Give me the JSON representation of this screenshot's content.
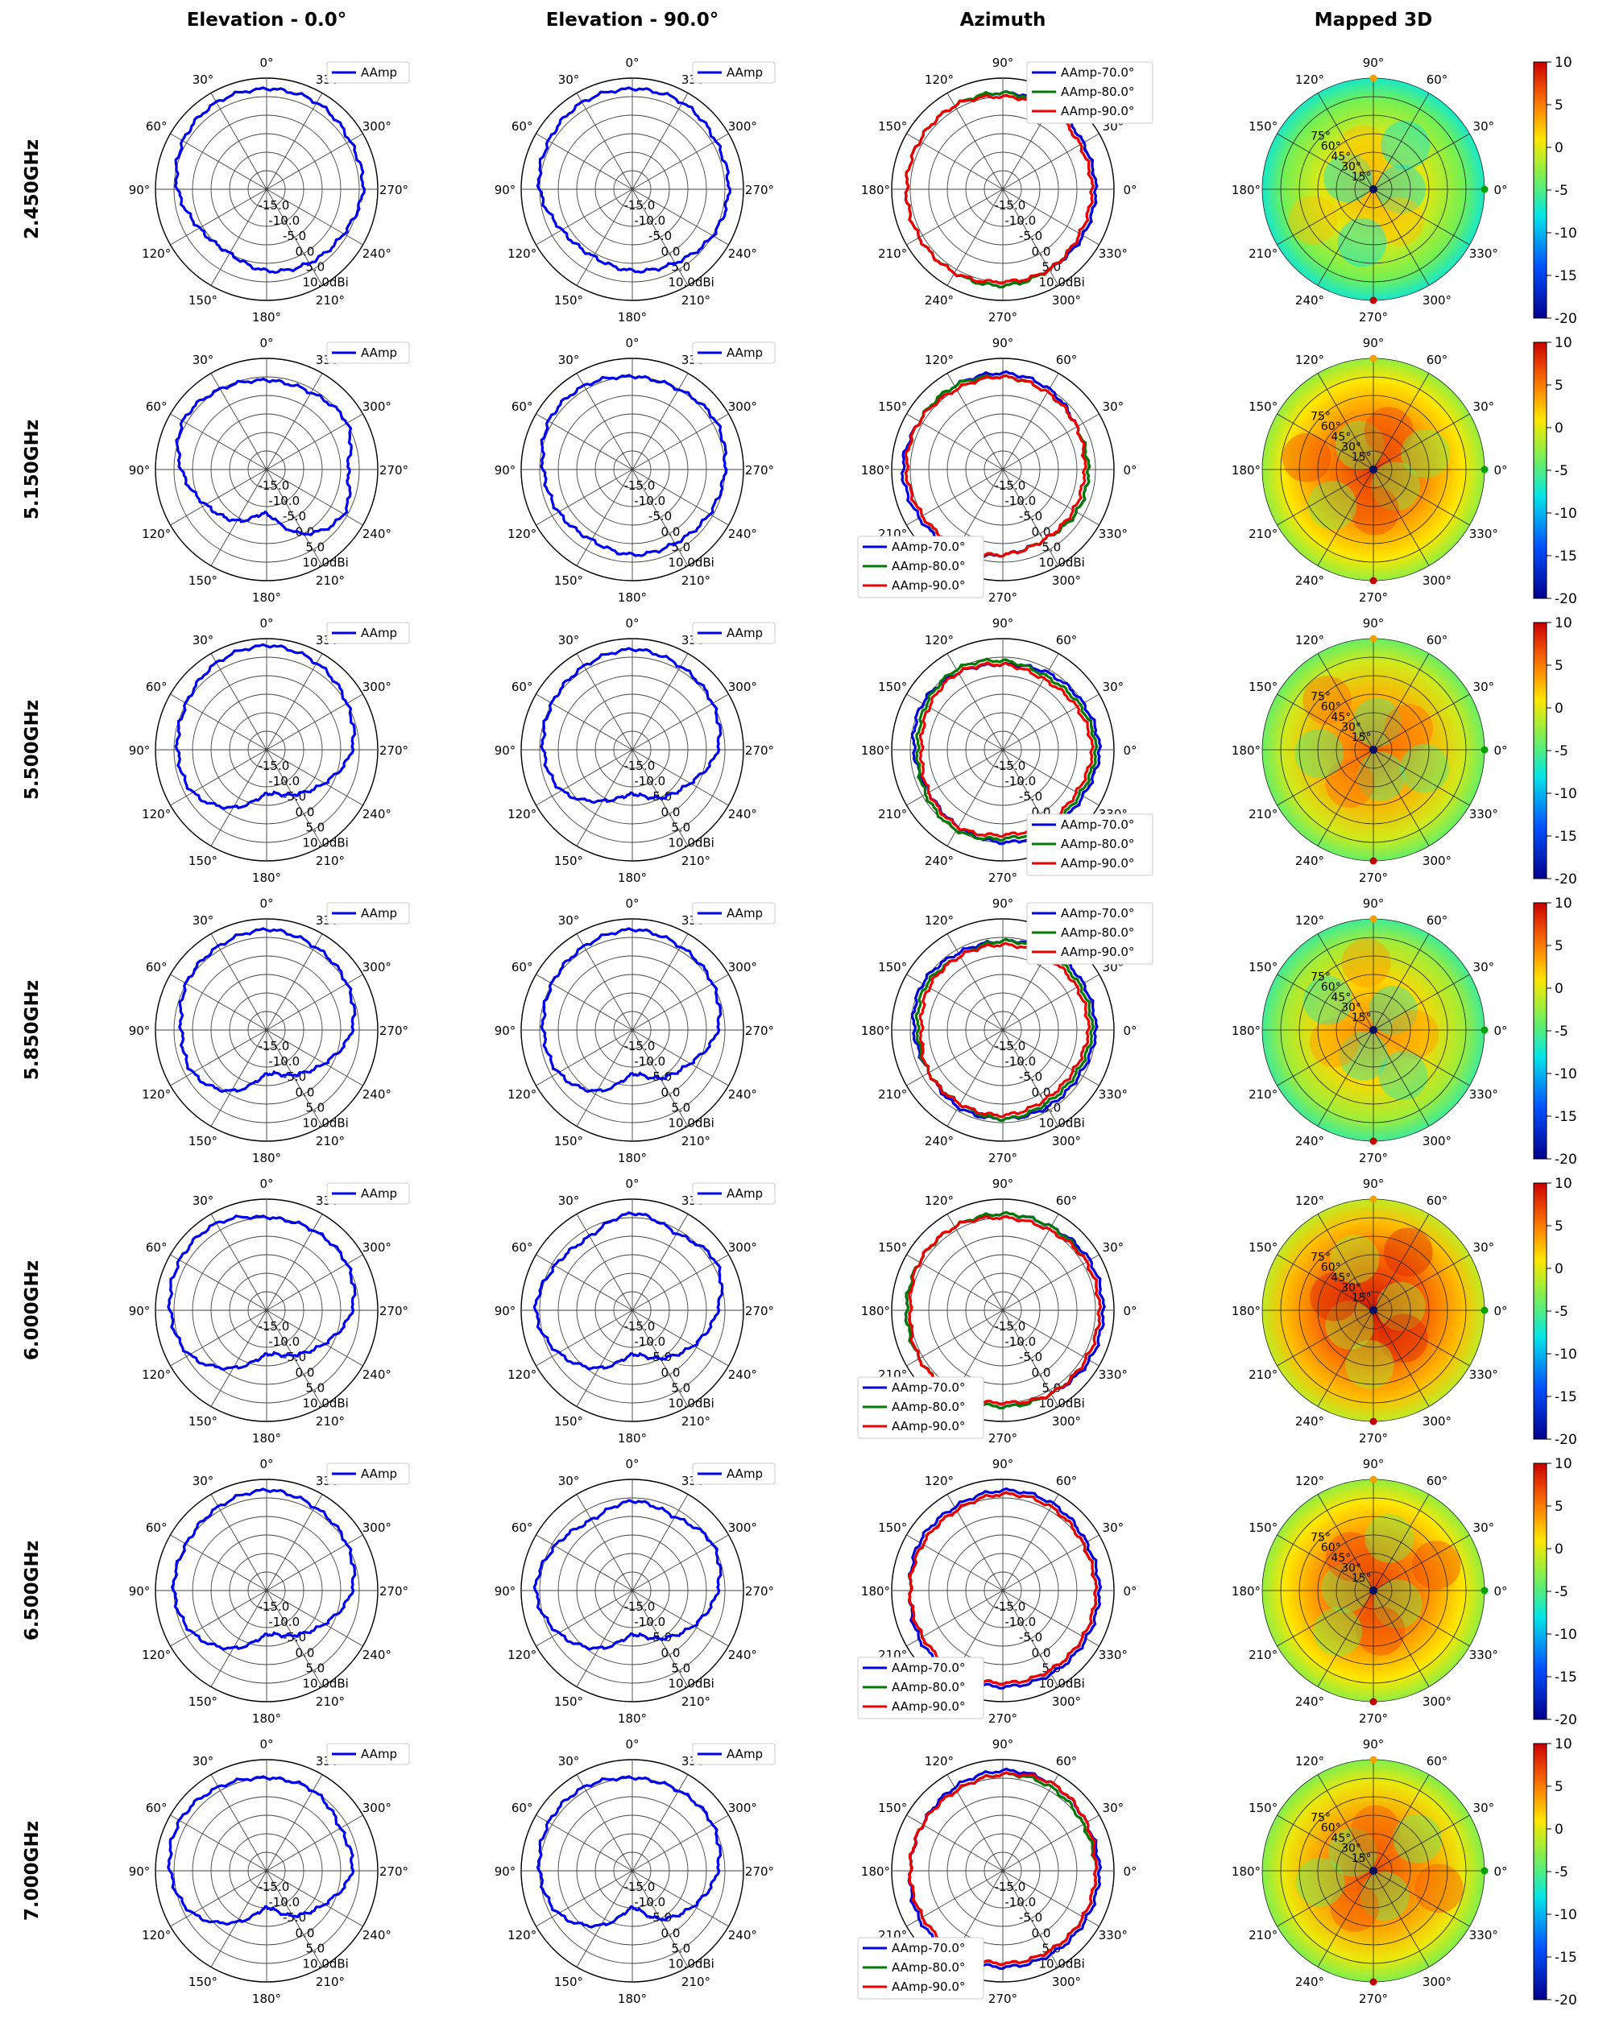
{
  "columns": [
    "Elevation - 0.0°",
    "Elevation - 90.0°",
    "Azimuth",
    "Mapped 3D"
  ],
  "rows": [
    "2.450GHz",
    "5.150GHz",
    "5.500GHz",
    "5.850GHz",
    "6.000GHz",
    "6.500GHz",
    "7.000GHz"
  ],
  "colors": {
    "elevation": "#0000ee",
    "az70": "#0000dd",
    "az80": "#007a00",
    "az90": "#ee0000"
  },
  "chart_data": {
    "type": "polar",
    "radial_axis": {
      "min": -20,
      "max": 10,
      "unit": "dBi",
      "tick_labels": [
        "-15.0",
        "-10.0",
        "-5.0",
        "0.0",
        "5.0",
        "10.0dBi"
      ]
    },
    "elevation_angle_labels": [
      "0°",
      "30°",
      "60°",
      "90°",
      "120°",
      "150°",
      "180°",
      "210°",
      "240°",
      "270°",
      "300°",
      "330°"
    ],
    "azimuth_angle_labels": [
      "0°",
      "30°",
      "60°",
      "90°",
      "120°",
      "150°",
      "180°",
      "210°",
      "240°",
      "270°",
      "300°",
      "330°"
    ],
    "elevation_legend": "AAmp",
    "azimuth_legend": [
      "AAmp-70.0°",
      "AAmp-80.0°",
      "AAmp-90.0°"
    ],
    "map3d_theta_labels": [
      "75°",
      "60°",
      "45°",
      "30°",
      "15°"
    ],
    "colorbar": {
      "min": -20,
      "max": 10,
      "ticks": [
        "10",
        "5",
        "0",
        "-5",
        "-10",
        "-15",
        "-20"
      ]
    },
    "frequencies": [
      {
        "freq": "2.450GHz",
        "elev0": [
          7,
          7,
          6,
          4,
          1,
          0,
          2,
          3,
          4,
          6,
          6,
          7
        ],
        "elev90": [
          7,
          7,
          6,
          5,
          2,
          1,
          2,
          3,
          5,
          6,
          6,
          7
        ],
        "az70": [
          5,
          5,
          6,
          6,
          6,
          6,
          6,
          6,
          6,
          6,
          5,
          5
        ],
        "az80": [
          4,
          4,
          5,
          6,
          6,
          6,
          6,
          6,
          6,
          6,
          5,
          4
        ],
        "az90": [
          4,
          4,
          5,
          5,
          6,
          6,
          6,
          6,
          6,
          5,
          5,
          4
        ],
        "map_warm": 0.55
      },
      {
        "freq": "5.150GHz",
        "elev0": [
          4,
          5,
          6,
          3,
          -1,
          -4,
          -8,
          0,
          4,
          2,
          5,
          4
        ],
        "elev90": [
          5,
          6,
          6,
          4,
          3,
          2,
          3,
          3,
          4,
          5,
          6,
          5
        ],
        "az70": [
          3,
          3,
          5,
          6,
          6,
          6,
          7,
          6,
          5,
          3,
          2,
          3
        ],
        "az80": [
          3,
          3,
          4,
          5,
          6,
          6,
          6,
          5,
          4,
          3,
          2,
          3
        ],
        "az90": [
          2,
          3,
          4,
          5,
          5,
          6,
          6,
          5,
          4,
          3,
          2,
          2
        ],
        "map_warm": 0.7
      },
      {
        "freq": "5.500GHz",
        "elev0": [
          8,
          7,
          5,
          4,
          3,
          -2,
          -8,
          -6,
          -2,
          3,
          5,
          7
        ],
        "elev90": [
          7,
          6,
          5,
          4,
          2,
          -4,
          -8,
          -5,
          -2,
          3,
          5,
          6
        ],
        "az70": [
          6,
          5,
          4,
          3,
          4,
          5,
          4,
          3,
          4,
          5,
          5,
          5
        ],
        "az80": [
          5,
          4,
          3,
          4,
          5,
          4,
          3,
          4,
          5,
          4,
          4,
          4
        ],
        "az90": [
          4,
          3,
          2,
          3,
          4,
          3,
          2,
          3,
          4,
          3,
          3,
          3
        ],
        "map_warm": 0.65
      },
      {
        "freq": "5.850GHz",
        "elev0": [
          7,
          6,
          5,
          3,
          3,
          -1,
          -8,
          -6,
          -2,
          3,
          5,
          6
        ],
        "elev90": [
          7,
          6,
          5,
          4,
          3,
          -1,
          -8,
          -5,
          -2,
          3,
          5,
          6
        ],
        "az70": [
          5,
          5,
          5,
          4,
          4,
          5,
          4,
          3,
          4,
          4,
          4,
          4
        ],
        "az80": [
          4,
          4,
          4,
          4,
          3,
          4,
          3,
          3,
          3,
          4,
          3,
          3
        ],
        "az90": [
          3,
          3,
          3,
          3,
          3,
          3,
          2,
          3,
          3,
          3,
          2,
          2
        ],
        "map_warm": 0.6
      },
      {
        "freq": "6.000GHz",
        "elev0": [
          5,
          7,
          7,
          6,
          4,
          -2,
          -8,
          -6,
          -2,
          3,
          5,
          5
        ],
        "elev90": [
          6,
          3,
          4,
          6,
          3,
          -2,
          -8,
          -5,
          -1,
          3,
          6,
          4
        ],
        "az70": [
          7,
          7,
          6,
          6,
          6,
          6,
          6,
          6,
          6,
          6,
          6,
          7
        ],
        "az80": [
          6,
          6,
          6,
          6,
          6,
          6,
          6,
          6,
          6,
          6,
          6,
          6
        ],
        "az90": [
          6,
          6,
          5,
          5,
          6,
          6,
          5,
          6,
          6,
          5,
          6,
          6
        ],
        "map_warm": 0.75
      },
      {
        "freq": "6.500GHz",
        "elev0": [
          7,
          6,
          5,
          5,
          3,
          -2,
          -8,
          -6,
          -2,
          3,
          5,
          6
        ],
        "elev90": [
          4,
          2,
          4,
          6,
          3,
          -2,
          -8,
          -5,
          -1,
          3,
          5,
          3
        ],
        "az70": [
          6,
          6,
          7,
          7,
          6,
          6,
          5,
          6,
          6,
          6,
          6,
          6
        ],
        "az80": [
          5,
          5,
          6,
          6,
          5,
          5,
          5,
          5,
          5,
          5,
          5,
          5
        ],
        "az90": [
          5,
          5,
          6,
          6,
          5,
          5,
          5,
          5,
          5,
          5,
          5,
          5
        ],
        "map_warm": 0.7
      },
      {
        "freq": "7.000GHz",
        "elev0": [
          5,
          6,
          7,
          6,
          3,
          -4,
          -10,
          -6,
          -2,
          3,
          3,
          5
        ],
        "elev90": [
          5,
          6,
          6,
          5,
          3,
          -3,
          -10,
          -5,
          -1,
          3,
          5,
          5
        ],
        "az70": [
          6,
          6,
          7,
          7,
          6,
          5,
          5,
          6,
          6,
          6,
          6,
          6
        ],
        "az80": [
          5,
          5,
          6,
          6,
          5,
          5,
          5,
          5,
          5,
          5,
          5,
          5
        ],
        "az90": [
          5,
          6,
          7,
          6,
          5,
          5,
          5,
          5,
          5,
          5,
          5,
          5
        ],
        "map_warm": 0.68
      }
    ]
  }
}
